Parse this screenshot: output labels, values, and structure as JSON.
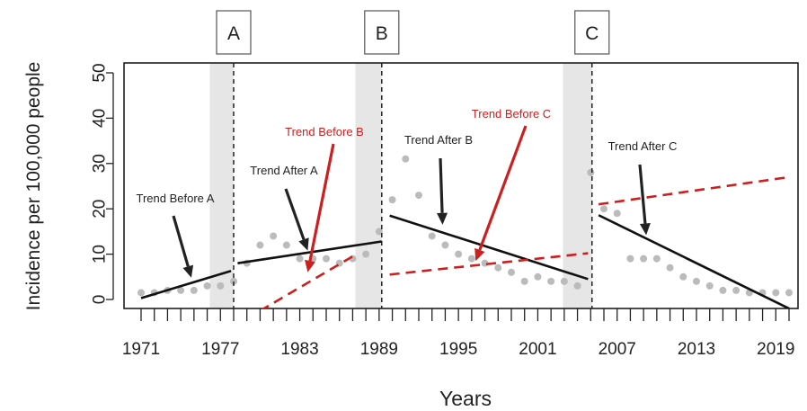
{
  "chart_data": {
    "type": "line",
    "title": "",
    "xlabel": "Years",
    "ylabel": "Incidence per 100,000 people",
    "xlim": [
      1970,
      2020.5
    ],
    "ylim": [
      0,
      50
    ],
    "x_tick_labels": [
      "1971",
      "1977",
      "1983",
      "1989",
      "1995",
      "2001",
      "2007",
      "2013",
      "2019"
    ],
    "x_tick_values": [
      1971,
      1977,
      1983,
      1989,
      1995,
      2001,
      2007,
      2013,
      2019
    ],
    "y_ticks": [
      0,
      10,
      20,
      30,
      40,
      50
    ],
    "grid": false,
    "shaded_regions": [
      [
        1976.2,
        1978
      ],
      [
        1987.2,
        1989.2
      ],
      [
        2002.9,
        2005.1
      ]
    ],
    "change_points": [
      {
        "label": "A",
        "x": 1978
      },
      {
        "label": "B",
        "x": 1989.2
      },
      {
        "label": "C",
        "x": 2005.1
      }
    ],
    "observed_points": {
      "x": [
        1971,
        1972,
        1973,
        1974,
        1975,
        1976,
        1977,
        1978,
        1979,
        1980,
        1981,
        1982,
        1983,
        1984,
        1985,
        1986,
        1987,
        1988,
        1989,
        1990,
        1991,
        1992,
        1993,
        1994,
        1995,
        1996,
        1997,
        1998,
        1999,
        2000,
        2001,
        2002,
        2003,
        2004,
        2005,
        2006,
        2007,
        2008,
        2009,
        2010,
        2011,
        2012,
        2013,
        2014,
        2015,
        2016,
        2017,
        2018,
        2019,
        2020
      ],
      "y": [
        1.5,
        1.5,
        2,
        2,
        2,
        3,
        3,
        4,
        8,
        12,
        14,
        12,
        9,
        9,
        9,
        8,
        9,
        10,
        15,
        22,
        31,
        23,
        14,
        12,
        10,
        9,
        8,
        7,
        6,
        4,
        5,
        4,
        4,
        3,
        28,
        20,
        19,
        9,
        9,
        9,
        7,
        5,
        4,
        3,
        2,
        2,
        1.5,
        1.5,
        1.5,
        1.5
      ]
    },
    "fitted_segments": [
      {
        "x": [
          1971,
          1977.8
        ],
        "y": [
          0.3,
          6.3
        ]
      },
      {
        "x": [
          1978.3,
          1989.2
        ],
        "y": [
          8,
          12.8
        ]
      },
      {
        "x": [
          1989.8,
          2004.8
        ],
        "y": [
          18.5,
          4.5
        ]
      },
      {
        "x": [
          2005.6,
          2020
        ],
        "y": [
          18.6,
          -2
        ]
      }
    ],
    "projected_segments": [
      {
        "x": [
          1980,
          1987
        ],
        "y": [
          -2.5,
          9.5
        ]
      },
      {
        "x": [
          1989.8,
          2004.8
        ],
        "y": [
          5.5,
          10.2
        ]
      },
      {
        "x": [
          2005.6,
          2020
        ],
        "y": [
          21,
          27
        ]
      }
    ],
    "annotations": [
      {
        "text": "Trend Before A",
        "color": "#222222",
        "arrow_to": [
          1974.8,
          4.8
        ]
      },
      {
        "text": "Trend After A",
        "color": "#222222",
        "arrow_to": [
          1983.6,
          10.8
        ]
      },
      {
        "text": "Trend Before B",
        "color": "#cc1f1f",
        "arrow_to": [
          1983.6,
          6
        ]
      },
      {
        "text": "Trend After B",
        "color": "#222222",
        "arrow_to": [
          1993.8,
          16.5
        ]
      },
      {
        "text": "Trend Before C",
        "color": "#cc1f1f",
        "arrow_to": [
          1996.3,
          8.5
        ]
      },
      {
        "text": "Trend After C",
        "color": "#222222",
        "arrow_to": [
          2009.2,
          14.2
        ]
      }
    ],
    "colors": {
      "fitted": "#111111",
      "projected": "#cc1f1f",
      "points": "#bbbbbb",
      "shade": "#e6e6e6",
      "annotation_black": "#222222",
      "annotation_red": "#cc1f1f"
    }
  }
}
